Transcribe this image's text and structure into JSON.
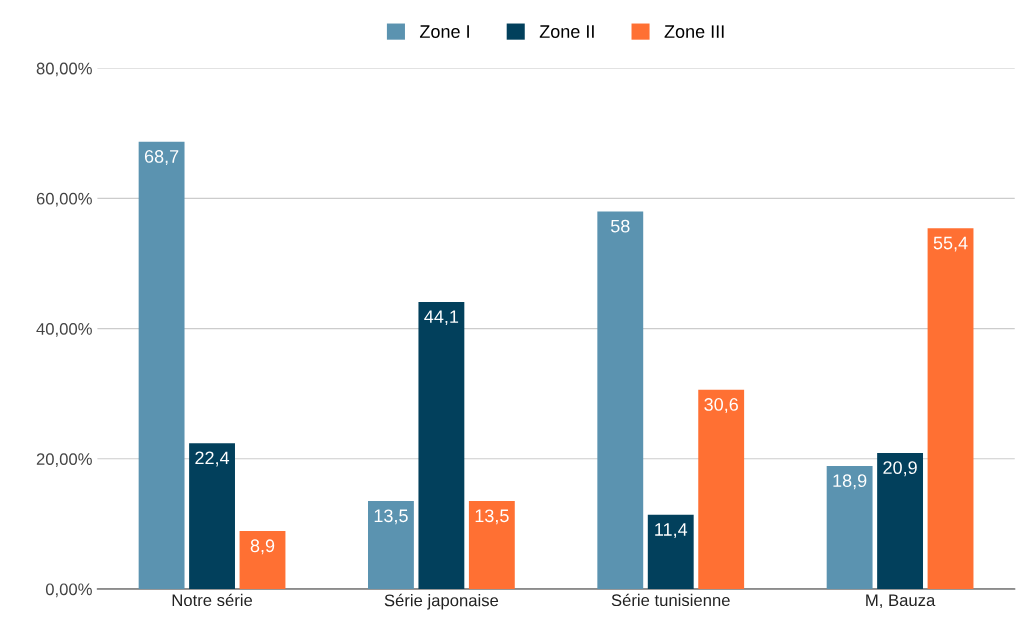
{
  "chart_data": {
    "type": "bar",
    "categories": [
      "Notre série",
      "Série japonaise",
      "Série tunisienne",
      "M, Bauza"
    ],
    "series": [
      {
        "name": "Zone I",
        "color": "#5b93b0",
        "values": [
          68.7,
          13.5,
          58,
          18.9
        ],
        "value_labels": [
          "68,7",
          "13,5",
          "58",
          "18,9"
        ]
      },
      {
        "name": "Zone II",
        "color": "#02405c",
        "values": [
          22.4,
          44.1,
          11.4,
          20.9
        ],
        "value_labels": [
          "22,4",
          "44,1",
          "11,4",
          "20,9"
        ]
      },
      {
        "name": "Zone III",
        "color": "#ff7033",
        "values": [
          8.9,
          13.5,
          30.6,
          55.4
        ],
        "value_labels": [
          "8,9",
          "13,5",
          "30,6",
          "55,4"
        ]
      }
    ],
    "ylim": [
      0,
      80
    ],
    "yticks": [
      {
        "value": 0,
        "label": "0,00%"
      },
      {
        "value": 20,
        "label": "20,00%"
      },
      {
        "value": 40,
        "label": "40,00%"
      },
      {
        "value": 60,
        "label": "60,00%"
      },
      {
        "value": 80,
        "label": "80,00%"
      }
    ],
    "grid": "y",
    "legend": "top"
  }
}
